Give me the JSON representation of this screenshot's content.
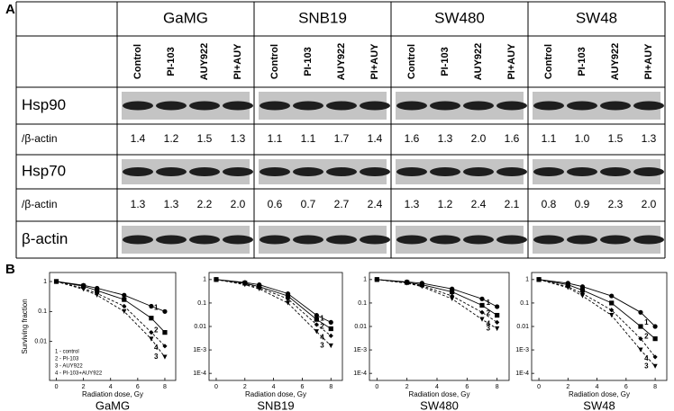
{
  "panel_a": {
    "label": "A",
    "cell_lines": [
      "GaMG",
      "SNB19",
      "SW480",
      "SW48"
    ],
    "treatments": [
      "Control",
      "PI-103",
      "AUY922",
      "PI+AUY"
    ],
    "rows": [
      {
        "label": "Hsp90",
        "kind": "blot"
      },
      {
        "label": "/β-actin",
        "kind": "values",
        "values": [
          [
            "1.4",
            "1.2",
            "1.5",
            "1.3"
          ],
          [
            "1.1",
            "1.1",
            "1.7",
            "1.4"
          ],
          [
            "1.6",
            "1.3",
            "2.0",
            "1.6"
          ],
          [
            "1.1",
            "1.0",
            "1.5",
            "1.3"
          ]
        ]
      },
      {
        "label": "Hsp70",
        "kind": "blot"
      },
      {
        "label": "/β-actin",
        "kind": "values",
        "values": [
          [
            "1.3",
            "1.3",
            "2.2",
            "2.0"
          ],
          [
            "0.6",
            "0.7",
            "2.7",
            "2.4"
          ],
          [
            "1.3",
            "1.2",
            "2.4",
            "2.1"
          ],
          [
            "0.8",
            "0.9",
            "2.3",
            "2.0"
          ]
        ]
      },
      {
        "label": "β-actin",
        "kind": "blot"
      }
    ]
  },
  "panel_b_label": "B",
  "chart_data": [
    {
      "type": "line",
      "title": "GaMG",
      "xlabel": "Radiation dose, Gy",
      "ylabel": "Surviving fraction",
      "x": [
        0,
        2,
        3,
        5,
        7,
        8
      ],
      "xlim": [
        -0.5,
        8.8
      ],
      "xticks": [
        0,
        2,
        4,
        6,
        8
      ],
      "ylim": [
        0.0005,
        2
      ],
      "yticks": [
        1,
        0.1,
        0.01
      ],
      "log_y": true,
      "legend": "lower left",
      "series": [
        {
          "name": "1 - control",
          "label": "1",
          "color": "#000000",
          "dashed": false,
          "marker": "circle",
          "values": [
            1,
            0.75,
            0.6,
            0.35,
            0.15,
            0.1
          ]
        },
        {
          "name": "2 - PI-103",
          "label": "2",
          "color": "#000000",
          "dashed": false,
          "marker": "square",
          "values": [
            1,
            0.7,
            0.5,
            0.25,
            0.06,
            0.02
          ]
        },
        {
          "name": "3 - AUY922",
          "label": "3",
          "color": "#000000",
          "dashed": true,
          "marker": "triangle",
          "values": [
            1,
            0.55,
            0.35,
            0.1,
            0.012,
            0.003
          ]
        },
        {
          "name": "4 - PI-103+AUY922",
          "label": "4",
          "color": "#000000",
          "dashed": true,
          "marker": "diamond",
          "values": [
            1,
            0.6,
            0.4,
            0.15,
            0.02,
            0.007
          ]
        }
      ]
    },
    {
      "type": "line",
      "title": "SNB19",
      "xlabel": "Radiation dose, Gy",
      "x": [
        0,
        2,
        3,
        5,
        7,
        8
      ],
      "xlim": [
        -0.5,
        8.8
      ],
      "xticks": [
        0,
        2,
        4,
        6,
        8
      ],
      "ylim": [
        5e-05,
        2
      ],
      "yticks": [
        1,
        0.1,
        0.01,
        {
          "value": 0.001,
          "label": "1E-3"
        },
        {
          "value": 0.0001,
          "label": "1E-4"
        }
      ],
      "log_y": true,
      "series": [
        {
          "label": "1",
          "color": "#000000",
          "dashed": false,
          "marker": "circle",
          "values": [
            1,
            0.75,
            0.6,
            0.25,
            0.03,
            0.015
          ]
        },
        {
          "label": "2",
          "color": "#000000",
          "dashed": false,
          "marker": "square",
          "values": [
            1,
            0.7,
            0.5,
            0.2,
            0.02,
            0.008
          ]
        },
        {
          "label": "3",
          "color": "#000000",
          "dashed": true,
          "marker": "triangle",
          "values": [
            1,
            0.6,
            0.4,
            0.1,
            0.006,
            0.0015
          ]
        },
        {
          "label": "4",
          "color": "#000000",
          "dashed": true,
          "marker": "diamond",
          "values": [
            1,
            0.65,
            0.45,
            0.15,
            0.012,
            0.004
          ]
        }
      ]
    },
    {
      "type": "line",
      "title": "SW480",
      "xlabel": "Radiation dose, Gy",
      "x": [
        0,
        2,
        3,
        5,
        7,
        8
      ],
      "xlim": [
        -0.5,
        8.8
      ],
      "xticks": [
        0,
        2,
        4,
        6,
        8
      ],
      "ylim": [
        5e-05,
        2
      ],
      "yticks": [
        1,
        0.1,
        0.01,
        {
          "value": 0.001,
          "label": "1E-3"
        },
        {
          "value": 0.0001,
          "label": "1E-4"
        }
      ],
      "log_y": true,
      "series": [
        {
          "label": "1",
          "color": "#000000",
          "dashed": false,
          "marker": "circle",
          "values": [
            1,
            0.8,
            0.7,
            0.4,
            0.15,
            0.07
          ]
        },
        {
          "label": "2",
          "color": "#000000",
          "dashed": false,
          "marker": "square",
          "values": [
            1,
            0.75,
            0.6,
            0.3,
            0.08,
            0.03
          ]
        },
        {
          "label": "3",
          "color": "#000000",
          "dashed": true,
          "marker": "triangle",
          "values": [
            1,
            0.7,
            0.5,
            0.15,
            0.02,
            0.008
          ]
        },
        {
          "label": "4",
          "color": "#000000",
          "dashed": true,
          "marker": "diamond",
          "values": [
            1,
            0.72,
            0.55,
            0.2,
            0.04,
            0.015
          ]
        }
      ]
    },
    {
      "type": "line",
      "title": "SW48",
      "xlabel": "Radiation dose, Gy",
      "x": [
        0,
        2,
        3,
        5,
        7,
        8
      ],
      "xlim": [
        -0.5,
        8.8
      ],
      "xticks": [
        0,
        2,
        4,
        6,
        8
      ],
      "ylim": [
        5e-05,
        2
      ],
      "yticks": [
        1,
        0.1,
        0.01,
        {
          "value": 0.001,
          "label": "1E-3"
        },
        {
          "value": 0.0001,
          "label": "1E-4"
        }
      ],
      "log_y": true,
      "series": [
        {
          "label": "1",
          "color": "#000000",
          "dashed": false,
          "marker": "circle",
          "values": [
            1,
            0.7,
            0.5,
            0.2,
            0.04,
            0.01
          ]
        },
        {
          "label": "2",
          "color": "#000000",
          "dashed": false,
          "marker": "square",
          "values": [
            1,
            0.6,
            0.35,
            0.1,
            0.01,
            0.003
          ]
        },
        {
          "label": "3",
          "color": "#000000",
          "dashed": true,
          "marker": "triangle",
          "values": [
            1,
            0.45,
            0.2,
            0.03,
            0.001,
            0.0002
          ]
        },
        {
          "label": "4",
          "color": "#000000",
          "dashed": true,
          "marker": "diamond",
          "values": [
            1,
            0.5,
            0.25,
            0.05,
            0.003,
            0.0005
          ]
        }
      ]
    }
  ]
}
